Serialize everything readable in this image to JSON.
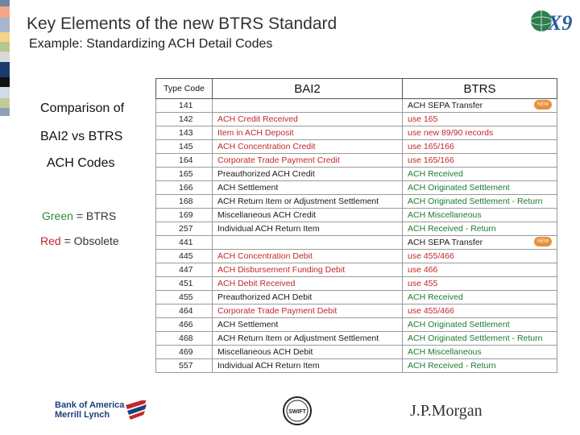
{
  "header": {
    "title": "Key Elements of the new BTRS Standard",
    "subtitle": "Example: Standardizing ACH Detail Codes"
  },
  "logos": {
    "x9": "X9",
    "bank": [
      "Bank of America",
      "Merrill Lynch"
    ],
    "swift": "SWIFT",
    "jpmorgan": "J.P.Morgan"
  },
  "sidebar": {
    "line1": "Comparison of",
    "line2": "BAI2 vs BTRS",
    "line3": "ACH Codes",
    "legend_green_word": "Green",
    "legend_green_rest": " = BTRS",
    "legend_red_word": "Red",
    "legend_red_rest": " = Obsolete"
  },
  "table": {
    "headers": [
      "Type Code",
      "BAI2",
      "BTRS"
    ],
    "new_badge": "NEW",
    "colors": {
      "green": "#1d7a30",
      "red": "#c0272d",
      "badge": "#e89038"
    },
    "rows": [
      {
        "code": "141",
        "bai2": "",
        "bai2_color": "",
        "btrs": "ACH SEPA Transfer",
        "btrs_color": "",
        "new": true
      },
      {
        "code": "142",
        "bai2": "ACH Credit Received",
        "bai2_color": "red",
        "btrs": " use 165",
        "btrs_color": "red",
        "new": false
      },
      {
        "code": "143",
        "bai2": "Item in ACH Deposit",
        "bai2_color": "red",
        "btrs": " use new 89/90 records",
        "btrs_color": "red",
        "new": false
      },
      {
        "code": "145",
        "bai2": "ACH Concentration Credit",
        "bai2_color": "red",
        "btrs": " use 165/166",
        "btrs_color": "red",
        "new": false
      },
      {
        "code": "164",
        "bai2": "Corporate Trade Payment Credit",
        "bai2_color": "red",
        "btrs": " use 165/166",
        "btrs_color": "red",
        "new": false
      },
      {
        "code": "165",
        "bai2": "Preauthorized ACH Credit",
        "bai2_color": "",
        "btrs": "ACH Received",
        "btrs_color": "green",
        "new": false
      },
      {
        "code": "166",
        "bai2": "ACH Settlement",
        "bai2_color": "",
        "btrs": "ACH Originated Settlement",
        "btrs_color": "green",
        "new": false
      },
      {
        "code": "168",
        "bai2": "ACH Return Item or Adjustment Settlement",
        "bai2_color": "",
        "btrs": "ACH Originated Settlement - Return",
        "btrs_color": "green",
        "new": false
      },
      {
        "code": "169",
        "bai2": "Miscellaneous ACH Credit",
        "bai2_color": "",
        "btrs": "ACH Miscellaneous",
        "btrs_color": "green",
        "new": false
      },
      {
        "code": "257",
        "bai2": "Individual ACH Return Item",
        "bai2_color": "",
        "btrs": "ACH Received - Return",
        "btrs_color": "green",
        "new": false
      },
      {
        "code": "441",
        "bai2": "",
        "bai2_color": "",
        "btrs": "ACH SEPA Transfer",
        "btrs_color": "",
        "new": true
      },
      {
        "code": "445",
        "bai2": "ACH Concentration Debit",
        "bai2_color": "red",
        "btrs": " use 455/466",
        "btrs_color": "red",
        "new": false
      },
      {
        "code": "447",
        "bai2": "ACH Disbursement Funding Debit",
        "bai2_color": "red",
        "btrs": " use 466",
        "btrs_color": "red",
        "new": false
      },
      {
        "code": "451",
        "bai2": "ACH Debit Received",
        "bai2_color": "red",
        "btrs": " use 455",
        "btrs_color": "red",
        "new": false
      },
      {
        "code": "455",
        "bai2": "Preauthorized ACH Debit",
        "bai2_color": "",
        "btrs": "ACH Received",
        "btrs_color": "green",
        "new": false
      },
      {
        "code": "464",
        "bai2": "Corporate Trade Payment Debit",
        "bai2_color": "red",
        "btrs": "use 455/466",
        "btrs_color": "red",
        "new": false
      },
      {
        "code": "466",
        "bai2": "ACH Settlement",
        "bai2_color": "",
        "btrs": "ACH Originated Settlement",
        "btrs_color": "green",
        "new": false
      },
      {
        "code": "468",
        "bai2": "ACH Return Item or Adjustment Settlement",
        "bai2_color": "",
        "btrs": "ACH Originated Settlement - Return",
        "btrs_color": "green",
        "new": false
      },
      {
        "code": "469",
        "bai2": "Miscellaneous ACH Debit",
        "bai2_color": "",
        "btrs": "ACH Miscellaneous",
        "btrs_color": "green",
        "new": false
      },
      {
        "code": "557",
        "bai2": "Individual ACH Return Item",
        "bai2_color": "",
        "btrs": "ACH Received - Return",
        "btrs_color": "green",
        "new": false
      }
    ]
  }
}
